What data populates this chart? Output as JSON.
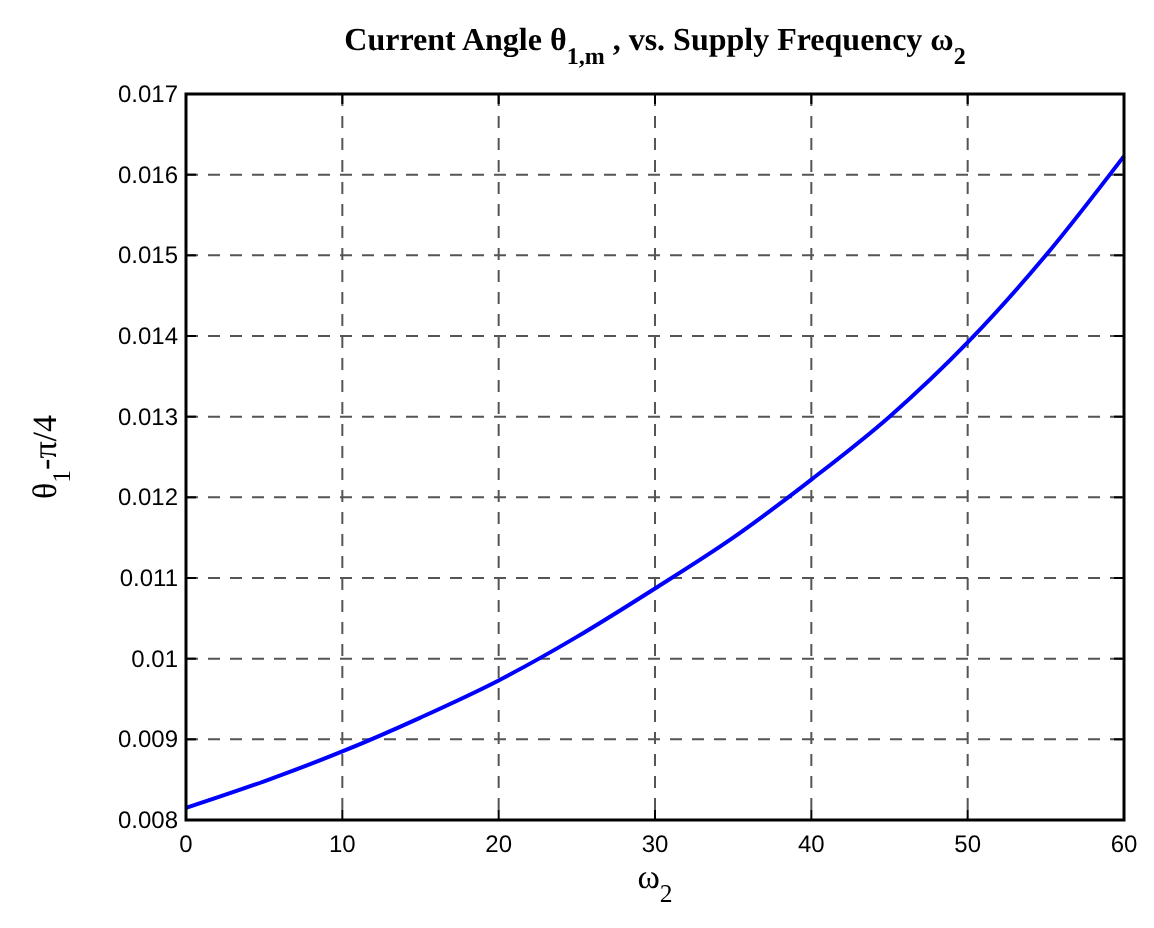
{
  "chart_data": {
    "type": "line",
    "title": "Current Angle θ$_{1,m}$ , vs. Supply Frequency ω$_{2}$",
    "xlabel": "ω$_{2}$",
    "ylabel": "θ$_{1}$-π/4",
    "x": [
      0,
      5,
      10,
      15,
      20,
      25,
      30,
      35,
      40,
      45,
      50,
      55,
      60
    ],
    "series": [
      {
        "color": "#0000ff",
        "values": [
          0.00815,
          0.00848,
          0.00885,
          0.00927,
          0.00973,
          0.01027,
          0.01087,
          0.0115,
          0.01222,
          0.013,
          0.01392,
          0.015,
          0.01623
        ]
      }
    ],
    "xlim": [
      0,
      60
    ],
    "xticks": [
      0,
      10,
      20,
      30,
      40,
      50,
      60
    ],
    "ylim": [
      0.008,
      0.017
    ],
    "yticks": [
      0.008,
      0.009,
      0.01,
      0.011,
      0.012,
      0.013,
      0.014,
      0.015,
      0.016,
      0.017
    ],
    "grid": true,
    "line_style": "solid",
    "marker": "none"
  }
}
